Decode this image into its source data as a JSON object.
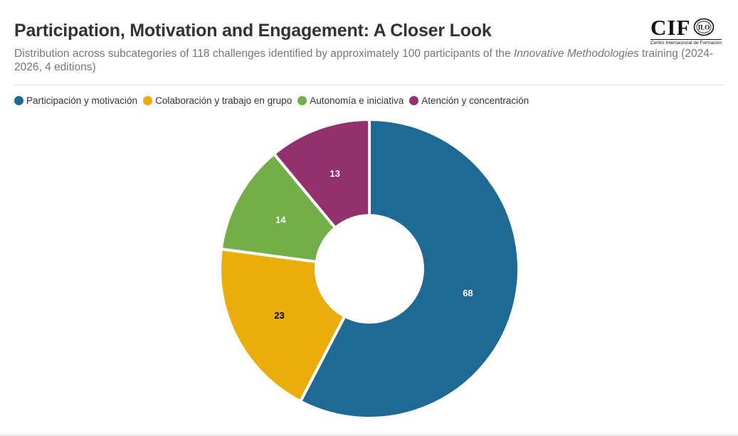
{
  "header": {
    "title": "Participation, Motivation and Engagement: A Closer Look",
    "subtitle_before": "Distribution across subcategories of 118 challenges identified by approximately 100 participants of the ",
    "subtitle_italic": "Innovative Methodologies",
    "subtitle_after": " training (2024-2026, 4 editions)"
  },
  "logo": {
    "text": "CIF",
    "seal_text": "ILO",
    "tagline": "Centro Internacional de Formación"
  },
  "chart_data": {
    "type": "pie",
    "style": "donut",
    "title": "Participation, Motivation and Engagement: A Closer Look",
    "legend_position": "top-left",
    "series": [
      {
        "name": "Participación y motivación",
        "value": 68,
        "color": "#1f6a95",
        "label_color": "#ffffff"
      },
      {
        "name": "Colaboración y trabajo en grupo",
        "value": 23,
        "color": "#ebad0b",
        "label_color": "#000000"
      },
      {
        "name": "Autonomía e iniciativa",
        "value": 14,
        "color": "#73ae49",
        "label_color": "#ffffff"
      },
      {
        "name": "Atención y concentración",
        "value": 13,
        "color": "#92316e",
        "label_color": "#ffffff"
      }
    ]
  }
}
